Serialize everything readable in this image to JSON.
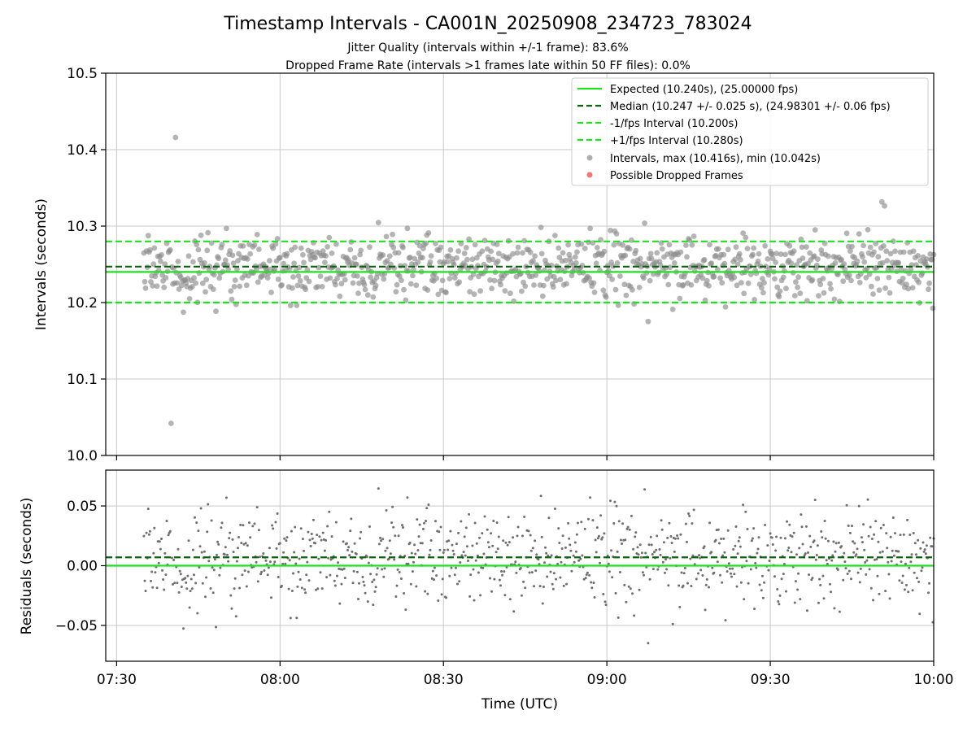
{
  "chart_data": [
    {
      "type": "scatter",
      "title": "Timestamp Intervals - CA001N_20250908_234723_783024",
      "subtitle_lines": [
        "Jitter Quality (intervals within +/-1 frame): 83.6%",
        "Dropped Frame Rate (intervals >1 frames late within 50 FF files): 0.0%"
      ],
      "ylabel": "Intervals (seconds)",
      "ylim": [
        10.0,
        10.5
      ],
      "yticks": [
        "10.0",
        "10.1",
        "10.2",
        "10.3",
        "10.4",
        "10.5"
      ],
      "ytick_values": [
        10.0,
        10.1,
        10.2,
        10.3,
        10.4,
        10.5
      ],
      "xlim": [
        "07:28",
        "10:00"
      ],
      "grid": true,
      "legend_position": "top-right",
      "reference_lines": [
        {
          "name": "Expected (10.240s), (25.00000 fps)",
          "y": 10.24,
          "style": "solid",
          "color": "#1fe21f"
        },
        {
          "name": "Median (10.247 +/- 0.025 s), (24.98301 +/- 0.06 fps)",
          "y": 10.247,
          "style": "dashed",
          "color": "#0a640a"
        },
        {
          "name": "-1/fps Interval (10.200s)",
          "y": 10.2,
          "style": "dashed",
          "color": "#1fe21f"
        },
        {
          "name": "+1/fps Interval (10.280s)",
          "y": 10.28,
          "style": "dashed",
          "color": "#1fe21f"
        }
      ],
      "series": [
        {
          "name": "Intervals, max (10.416s), min (10.042s)",
          "color": "#8c8c8c",
          "count": 900,
          "x_range": [
            "07:35",
            "10:00"
          ],
          "median": 10.247,
          "std": 0.025,
          "max": 10.416,
          "min": 10.042
        },
        {
          "name": "Possible Dropped Frames",
          "color": "#f06060",
          "count": 0
        }
      ]
    },
    {
      "type": "scatter",
      "ylabel": "Residuals (seconds)",
      "xlabel": "Time (UTC)",
      "ylim": [
        -0.08,
        0.08
      ],
      "yticks": [
        "0.05",
        "0.00",
        "−0.05"
      ],
      "ytick_values": [
        0.05,
        0.0,
        -0.05
      ],
      "xticks": [
        "07:30",
        "08:00",
        "08:30",
        "09:00",
        "09:30",
        "10:00"
      ],
      "xlim": [
        "07:28",
        "10:00"
      ],
      "grid": true,
      "reference_lines": [
        {
          "y": 0.0,
          "style": "solid",
          "color": "#1fe21f"
        },
        {
          "y": 0.007,
          "style": "dashed",
          "color": "#0a640a"
        }
      ],
      "series": [
        {
          "color": "#6e6e6e",
          "count": 900,
          "x_range": [
            "07:35",
            "10:00"
          ]
        }
      ]
    }
  ]
}
